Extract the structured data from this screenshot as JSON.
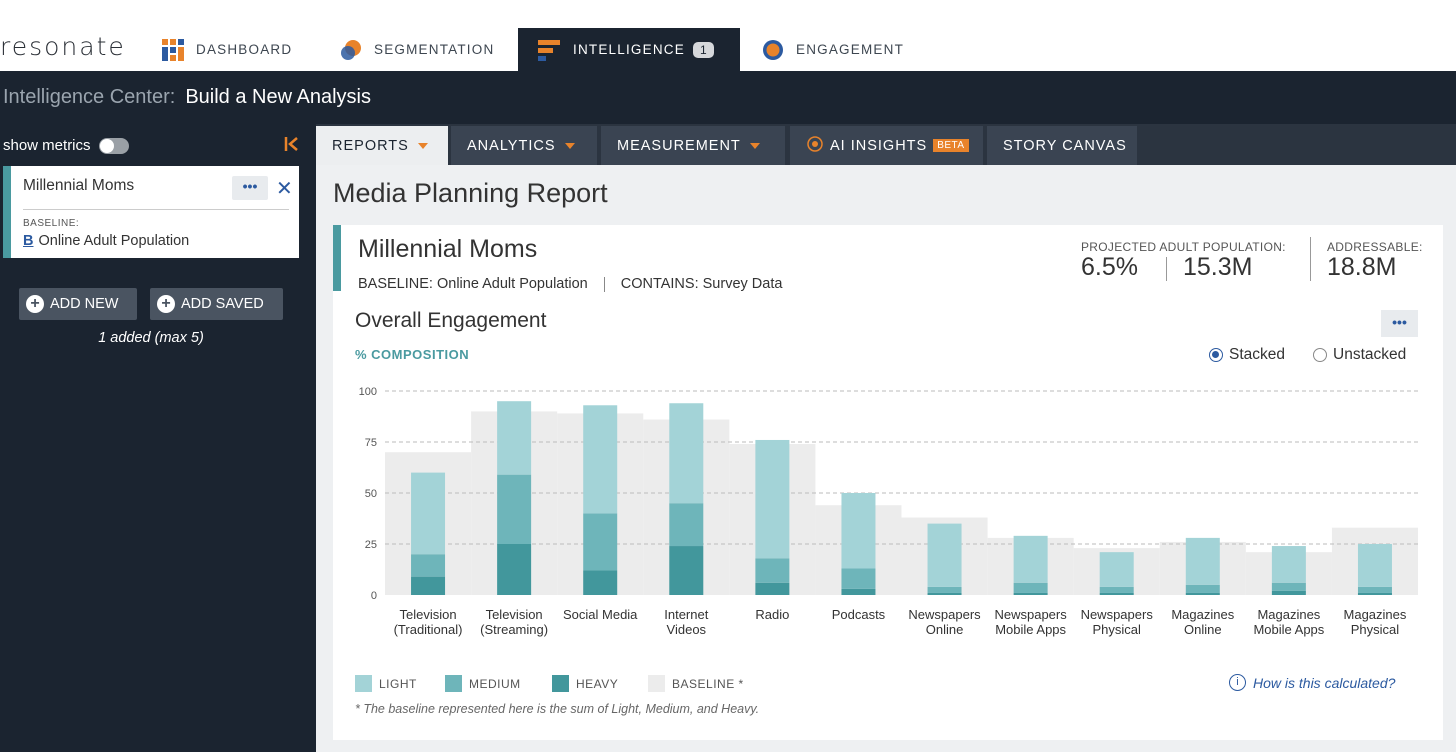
{
  "app": {
    "logo": "resonate"
  },
  "nav": {
    "tabs": [
      {
        "label": "DASHBOARD"
      },
      {
        "label": "SEGMENTATION"
      },
      {
        "label": "INTELLIGENCE",
        "badge": "1"
      },
      {
        "label": "ENGAGEMENT"
      }
    ]
  },
  "titlebar": {
    "section": "Intelligence Center:",
    "page": "Build a New Analysis"
  },
  "sidebar": {
    "show_metrics": "show metrics",
    "segment": {
      "name": "Millennial Moms",
      "baseline_label": "BASELINE:",
      "baseline_icon": "B",
      "baseline": "Online Adult Population",
      "more": "•••",
      "close": "✕"
    },
    "add_new": "ADD NEW",
    "add_saved": "ADD SAVED",
    "added_count": "1 added (max 5)"
  },
  "subtabs": {
    "reports": "REPORTS",
    "analytics": "ANALYTICS",
    "measurement": "MEASUREMENT",
    "ai_insights": "AI INSIGHTS",
    "beta": "BETA",
    "story_canvas": "STORY CANVAS"
  },
  "report": {
    "title": "Media Planning Report",
    "segment_name": "Millennial Moms",
    "baseline_text": "BASELINE: Online Adult Population",
    "contains_text": "CONTAINS: Survey Data",
    "projected_label": "PROJECTED ADULT POPULATION:",
    "projected_pct": "6.5%",
    "projected_count": "15.3M",
    "addressable_label": "ADDRESSABLE:",
    "addressable_count": "18.8M",
    "engagement_title": "Overall Engagement",
    "more": "•••",
    "composition_label": "% COMPOSITION",
    "radio_stacked": "Stacked",
    "radio_unstacked": "Unstacked",
    "how_calculated": "How is this calculated?",
    "footnote": "* The baseline represented here is the sum of Light, Medium, and Heavy."
  },
  "colors": {
    "light": "#a3d3d7",
    "medium": "#6eb5ba",
    "heavy": "#42979c",
    "baseline": "#ececec",
    "accent": "#e8832b",
    "link": "#2c5aa0"
  },
  "chart_data": {
    "type": "bar",
    "stacked": true,
    "ylim": [
      0,
      100
    ],
    "yticks": [
      0,
      25,
      50,
      75,
      100
    ],
    "categories": [
      [
        "Television",
        "(Traditional)"
      ],
      [
        "Television",
        "(Streaming)"
      ],
      [
        "Social Media"
      ],
      [
        "Internet",
        "Videos"
      ],
      [
        "Radio"
      ],
      [
        "Podcasts"
      ],
      [
        "Newspapers",
        "Online"
      ],
      [
        "Newspapers",
        "Mobile Apps"
      ],
      [
        "Newspapers",
        "Physical"
      ],
      [
        "Magazines",
        "Online"
      ],
      [
        "Magazines",
        "Mobile Apps"
      ],
      [
        "Magazines",
        "Physical"
      ]
    ],
    "series": [
      {
        "name": "HEAVY",
        "values": [
          9,
          25,
          12,
          24,
          6,
          3,
          1,
          1,
          1,
          1,
          2,
          1
        ]
      },
      {
        "name": "MEDIUM",
        "values": [
          11,
          34,
          28,
          21,
          12,
          10,
          3,
          5,
          3,
          4,
          4,
          3
        ]
      },
      {
        "name": "LIGHT",
        "values": [
          40,
          36,
          53,
          49,
          58,
          37,
          31,
          23,
          17,
          23,
          18,
          21
        ]
      }
    ],
    "baseline": {
      "name": "BASELINE *",
      "values": [
        70,
        90,
        89,
        86,
        74,
        44,
        38,
        28,
        23,
        26,
        21,
        33
      ]
    },
    "legend": [
      "LIGHT",
      "MEDIUM",
      "HEAVY",
      "BASELINE *"
    ]
  }
}
